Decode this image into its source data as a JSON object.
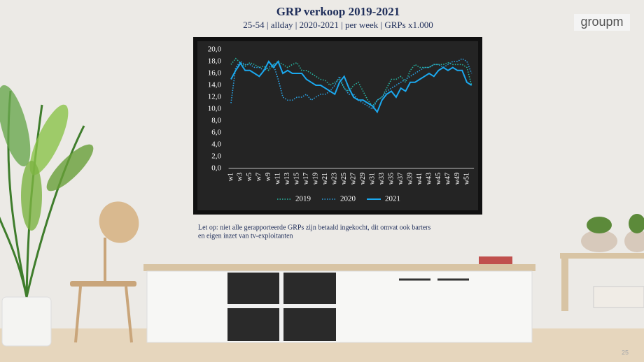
{
  "logo": "groupm",
  "note": [
    "Let op: niet alle gerapporteerde GRPs zijn betaald ingekocht, dit omvat ook barters",
    "en eigen inzet van tv-exploitanten"
  ],
  "page_number": "25",
  "chart_data": {
    "type": "line",
    "title": "GRP verkoop 2019-2021",
    "subtitle": "25-54 | allday | 2020-2021 | per week | GRPs x1.000",
    "categories": [
      "w1",
      null,
      "w3",
      null,
      "w5",
      null,
      "w7",
      null,
      "w9",
      null,
      "w11",
      null,
      "w13",
      null,
      "w15",
      null,
      "w17",
      null,
      "w19",
      null,
      "w21",
      null,
      "w23",
      null,
      "w25",
      null,
      "w27",
      null,
      "w29",
      null,
      "w31",
      null,
      "w33",
      null,
      "w35",
      null,
      "w37",
      null,
      "w39",
      null,
      "w41",
      null,
      "w43",
      null,
      "w45",
      null,
      "w47",
      null,
      "w49",
      null,
      "w51",
      null
    ],
    "series": [
      {
        "name": "2019",
        "color": "#27b3a0",
        "style": "dotted",
        "values": [
          17.5,
          18.5,
          17.8,
          17.2,
          17.8,
          17.5,
          17.0,
          17.2,
          16.5,
          17.5,
          18.0,
          17.5,
          17.0,
          17.5,
          17.8,
          16.5,
          16.5,
          16.0,
          15.5,
          15.0,
          14.8,
          14.0,
          14.5,
          15.0,
          13.5,
          13.0,
          14.0,
          14.5,
          13.0,
          11.5,
          10.5,
          11.5,
          12.0,
          13.5,
          15.0,
          15.0,
          15.5,
          14.5,
          16.5,
          17.5,
          17.0,
          17.0,
          17.0,
          17.5,
          17.5,
          17.5,
          17.8,
          17.5,
          17.5,
          17.5,
          17.0,
          14.0
        ]
      },
      {
        "name": "2020",
        "color": "#2a9fe0",
        "style": "dotted",
        "values": [
          11.0,
          17.0,
          18.0,
          17.5,
          17.5,
          17.0,
          17.0,
          16.5,
          17.0,
          17.5,
          15.0,
          12.0,
          11.5,
          11.5,
          12.0,
          12.0,
          12.5,
          11.5,
          12.0,
          12.5,
          12.5,
          13.0,
          14.0,
          15.5,
          13.5,
          12.5,
          12.5,
          11.5,
          11.0,
          10.5,
          10.0,
          11.5,
          12.0,
          13.0,
          13.5,
          14.0,
          14.5,
          15.0,
          15.5,
          16.0,
          16.5,
          17.0,
          17.0,
          17.5,
          17.5,
          17.0,
          17.5,
          18.0,
          18.0,
          18.5,
          18.0,
          16.0
        ]
      },
      {
        "name": "2021",
        "color": "#1ba8ee",
        "style": "solid",
        "values": [
          15.0,
          16.5,
          17.7,
          16.5,
          16.5,
          16.0,
          15.5,
          16.5,
          18.0,
          17.0,
          18.0,
          16.0,
          16.5,
          16.0,
          16.0,
          16.0,
          15.0,
          14.5,
          14.0,
          14.0,
          13.5,
          13.0,
          12.5,
          14.5,
          15.5,
          13.5,
          12.0,
          11.5,
          11.5,
          11.0,
          10.5,
          9.5,
          11.5,
          12.5,
          13.0,
          12.0,
          13.5,
          13.0,
          14.5,
          14.5,
          15.0,
          15.5,
          16.0,
          15.5,
          16.5,
          17.0,
          16.5,
          17.0,
          16.5,
          16.5,
          14.5,
          14.0
        ]
      }
    ],
    "ylim": [
      0,
      20
    ],
    "yticks": [
      {
        "value": 0,
        "label": "0,0"
      },
      {
        "value": 2,
        "label": "2,0"
      },
      {
        "value": 4,
        "label": "4,0"
      },
      {
        "value": 6,
        "label": "6,0"
      },
      {
        "value": 8,
        "label": "8,0"
      },
      {
        "value": 10,
        "label": "10,0"
      },
      {
        "value": 12,
        "label": "12,0"
      },
      {
        "value": 14,
        "label": "14,0"
      },
      {
        "value": 16,
        "label": "16,0"
      },
      {
        "value": 18,
        "label": "18,0"
      },
      {
        "value": 20,
        "label": "20,0"
      }
    ],
    "grid": false,
    "legend": "bottom"
  }
}
